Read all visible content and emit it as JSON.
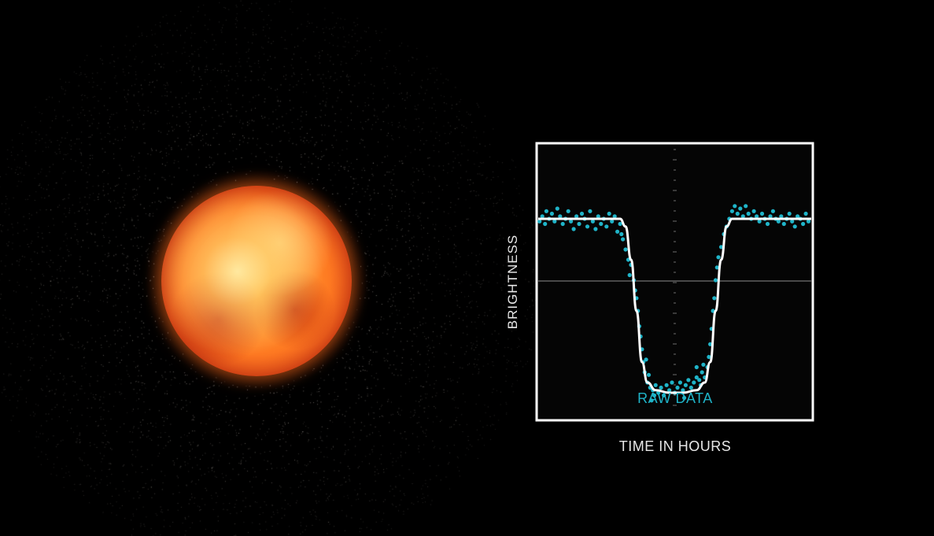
{
  "chart_data": {
    "type": "scatter",
    "title": "",
    "xlabel": "TIME IN HOURS",
    "ylabel": "BRIGHTNESS",
    "annotation": "RAW DATA",
    "xlim": [
      0,
      10
    ],
    "ylim": [
      0,
      1
    ],
    "grid": false,
    "colors": {
      "points": "#1fb4c8",
      "model": "#ffffff",
      "frame": "#ffffff",
      "midline": "#bbbbbb"
    },
    "series": [
      {
        "type": "scatter",
        "values": [
          [
            0.05,
            0.75
          ],
          [
            0.15,
            0.77
          ],
          [
            0.25,
            0.74
          ],
          [
            0.3,
            0.79
          ],
          [
            0.4,
            0.76
          ],
          [
            0.5,
            0.78
          ],
          [
            0.6,
            0.75
          ],
          [
            0.7,
            0.8
          ],
          [
            0.8,
            0.77
          ],
          [
            0.9,
            0.74
          ],
          [
            1.0,
            0.76
          ],
          [
            1.1,
            0.79
          ],
          [
            1.2,
            0.75
          ],
          [
            1.3,
            0.72
          ],
          [
            1.4,
            0.77
          ],
          [
            1.5,
            0.74
          ],
          [
            1.6,
            0.78
          ],
          [
            1.7,
            0.76
          ],
          [
            1.8,
            0.73
          ],
          [
            1.9,
            0.79
          ],
          [
            2.0,
            0.75
          ],
          [
            2.1,
            0.72
          ],
          [
            2.2,
            0.77
          ],
          [
            2.3,
            0.74
          ],
          [
            2.4,
            0.76
          ],
          [
            2.5,
            0.73
          ],
          [
            2.6,
            0.78
          ],
          [
            2.7,
            0.75
          ],
          [
            2.8,
            0.77
          ],
          [
            2.9,
            0.71
          ],
          [
            3.0,
            0.74
          ],
          [
            3.05,
            0.7
          ],
          [
            3.1,
            0.68
          ],
          [
            3.2,
            0.64
          ],
          [
            3.3,
            0.6
          ],
          [
            3.4,
            0.58
          ],
          [
            3.5,
            0.52
          ],
          [
            3.55,
            0.48
          ],
          [
            3.6,
            0.45
          ],
          [
            3.65,
            0.4
          ],
          [
            3.7,
            0.34
          ],
          [
            3.75,
            0.3
          ],
          [
            3.8,
            0.25
          ],
          [
            3.85,
            0.2
          ],
          [
            3.9,
            0.16
          ],
          [
            4.0,
            0.12
          ],
          [
            4.1,
            0.1
          ],
          [
            4.2,
            0.09
          ],
          [
            4.3,
            0.11
          ],
          [
            4.4,
            0.08
          ],
          [
            4.5,
            0.1
          ],
          [
            4.6,
            0.07
          ],
          [
            4.7,
            0.11
          ],
          [
            4.8,
            0.09
          ],
          [
            4.9,
            0.12
          ],
          [
            5.0,
            0.08
          ],
          [
            5.1,
            0.1
          ],
          [
            5.2,
            0.12
          ],
          [
            5.3,
            0.09
          ],
          [
            5.4,
            0.11
          ],
          [
            5.5,
            0.13
          ],
          [
            5.6,
            0.1
          ],
          [
            5.7,
            0.12
          ],
          [
            5.8,
            0.14
          ],
          [
            5.9,
            0.13
          ],
          [
            6.0,
            0.16
          ],
          [
            6.1,
            0.14
          ],
          [
            6.2,
            0.18
          ],
          [
            6.3,
            0.27
          ],
          [
            6.35,
            0.33
          ],
          [
            6.4,
            0.4
          ],
          [
            6.45,
            0.45
          ],
          [
            6.5,
            0.52
          ],
          [
            6.55,
            0.57
          ],
          [
            6.6,
            0.61
          ],
          [
            6.7,
            0.65
          ],
          [
            6.8,
            0.7
          ],
          [
            6.9,
            0.73
          ],
          [
            7.0,
            0.76
          ],
          [
            7.1,
            0.79
          ],
          [
            7.2,
            0.81
          ],
          [
            7.3,
            0.78
          ],
          [
            7.4,
            0.8
          ],
          [
            7.5,
            0.77
          ],
          [
            7.6,
            0.81
          ],
          [
            7.7,
            0.78
          ],
          [
            7.8,
            0.76
          ],
          [
            7.9,
            0.79
          ],
          [
            8.0,
            0.77
          ],
          [
            8.1,
            0.75
          ],
          [
            8.2,
            0.78
          ],
          [
            8.3,
            0.76
          ],
          [
            8.4,
            0.74
          ],
          [
            8.5,
            0.77
          ],
          [
            8.6,
            0.79
          ],
          [
            8.7,
            0.76
          ],
          [
            8.8,
            0.75
          ],
          [
            8.9,
            0.77
          ],
          [
            9.0,
            0.74
          ],
          [
            9.1,
            0.76
          ],
          [
            9.2,
            0.78
          ],
          [
            9.3,
            0.75
          ],
          [
            9.4,
            0.73
          ],
          [
            9.5,
            0.77
          ],
          [
            9.6,
            0.76
          ],
          [
            9.7,
            0.74
          ],
          [
            9.8,
            0.78
          ],
          [
            9.9,
            0.75
          ],
          [
            4.15,
            0.05
          ],
          [
            5.35,
            0.06
          ],
          [
            5.8,
            0.18
          ],
          [
            3.95,
            0.21
          ],
          [
            4.05,
            0.15
          ],
          [
            5.95,
            0.11
          ],
          [
            6.05,
            0.19
          ],
          [
            4.25,
            0.07
          ],
          [
            6.25,
            0.22
          ],
          [
            3.35,
            0.54
          ]
        ]
      },
      {
        "type": "line",
        "values": [
          [
            0.0,
            0.76
          ],
          [
            3.0,
            0.76
          ],
          [
            3.2,
            0.73
          ],
          [
            3.4,
            0.6
          ],
          [
            3.6,
            0.4
          ],
          [
            3.8,
            0.2
          ],
          [
            4.0,
            0.12
          ],
          [
            4.3,
            0.09
          ],
          [
            4.8,
            0.08
          ],
          [
            5.3,
            0.08
          ],
          [
            5.8,
            0.09
          ],
          [
            6.1,
            0.12
          ],
          [
            6.3,
            0.2
          ],
          [
            6.5,
            0.4
          ],
          [
            6.7,
            0.6
          ],
          [
            6.9,
            0.73
          ],
          [
            7.1,
            0.76
          ],
          [
            10.0,
            0.76
          ]
        ]
      }
    ]
  }
}
